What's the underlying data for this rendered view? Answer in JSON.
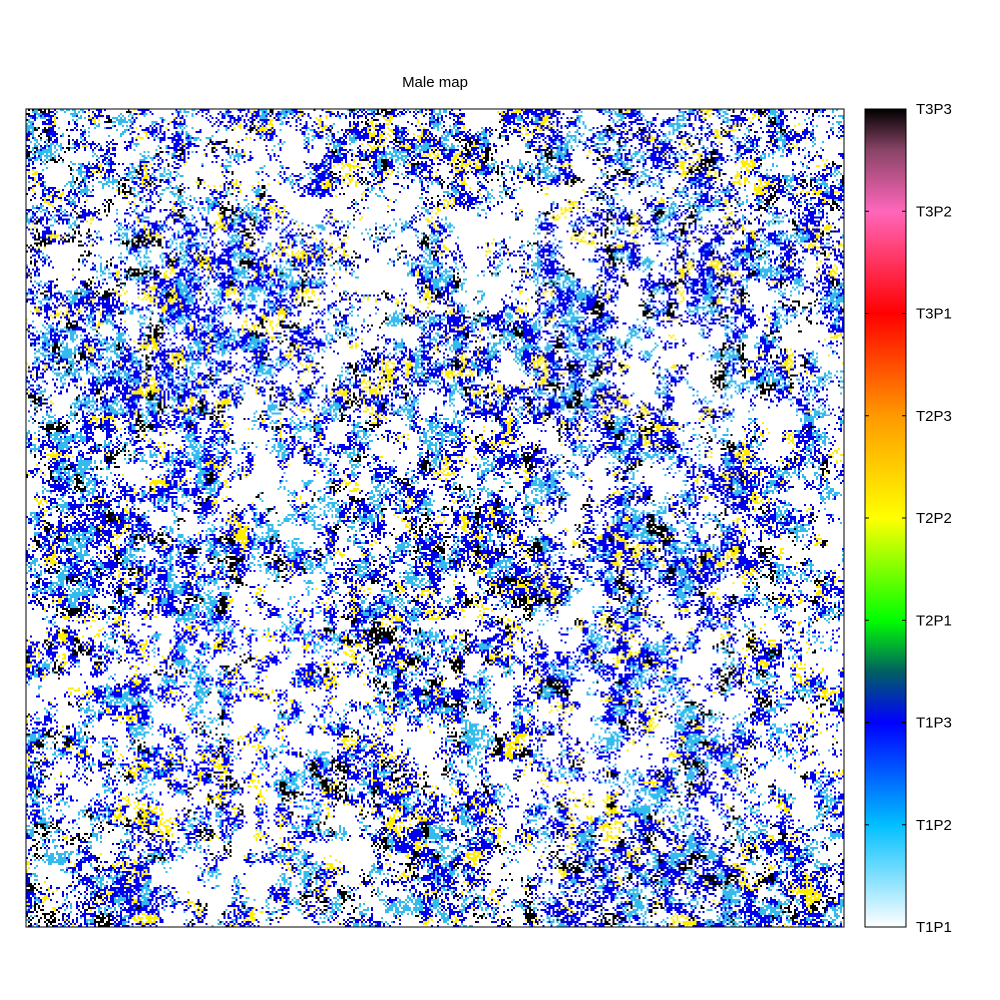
{
  "chart_data": {
    "type": "heatmap",
    "title": "Male map",
    "xlabel": "",
    "ylabel": "",
    "grid": false,
    "colorbar": {
      "placement": "right",
      "tick_labels": [
        "T1P1",
        "T1P2",
        "T1P3",
        "T2P1",
        "T2P2",
        "T2P3",
        "T3P1",
        "T3P2",
        "T3P3"
      ],
      "range": [
        0,
        8
      ],
      "colormap_stops": [
        {
          "value": 0.0,
          "color": "#ffffff"
        },
        {
          "value": 1.0,
          "color": "#00bfff"
        },
        {
          "value": 2.0,
          "color": "#0000ff"
        },
        {
          "value": 2.5,
          "color": "#006060"
        },
        {
          "value": 3.0,
          "color": "#00ff00"
        },
        {
          "value": 4.0,
          "color": "#ffff00"
        },
        {
          "value": 5.0,
          "color": "#ff9900"
        },
        {
          "value": 6.0,
          "color": "#ff0000"
        },
        {
          "value": 7.0,
          "color": "#ff66bb"
        },
        {
          "value": 7.6,
          "color": "#884466"
        },
        {
          "value": 8.0,
          "color": "#000000"
        }
      ]
    },
    "map_composition": [
      {
        "category": "T1P1",
        "color": "#ffffff",
        "share": 0.56
      },
      {
        "category": "T1P2",
        "color": "#33bbee",
        "share": 0.12
      },
      {
        "category": "T1P3",
        "color": "#0000ee",
        "share": 0.19
      },
      {
        "category": "T2P2",
        "color": "#ffee00",
        "share": 0.07
      },
      {
        "category": "T3P3",
        "color": "#000000",
        "share": 0.06
      }
    ]
  }
}
